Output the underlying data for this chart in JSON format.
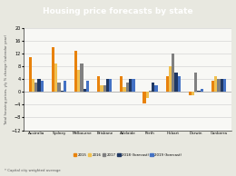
{
  "title": "Housing price forecasts by state",
  "title_bg": "#e8820c",
  "title_color": "white",
  "categories": [
    "Australia*",
    "Sydney",
    "Melbourne",
    "Brisbane",
    "Adelaide",
    "Perth",
    "Hobart",
    "Darwin",
    "Canberra"
  ],
  "series": {
    "2015": [
      11,
      14,
      13,
      5,
      5,
      -3.5,
      5,
      -1,
      3.5
    ],
    "2016": [
      4,
      9,
      7,
      2,
      1.5,
      -2,
      8,
      -1,
      5
    ],
    "2017": [
      3,
      3,
      9,
      2,
      3,
      0.5,
      12,
      6,
      4
    ],
    "2018 (forecast)": [
      4,
      0.5,
      1,
      4,
      4,
      3,
      6,
      0.5,
      4
    ],
    "2019 (forecast)": [
      3.5,
      3.5,
      3.5,
      4,
      4,
      2,
      5,
      1,
      4
    ]
  },
  "colors": {
    "2015": "#e8820c",
    "2016": "#f0c050",
    "2017": "#808080",
    "2018 (forecast)": "#1f3864",
    "2019 (forecast)": "#4472c4"
  },
  "ylabel": "Total housing prices, y/y % change (calendar year)",
  "ylim": [
    -12,
    20
  ],
  "yticks": [
    -12,
    -8,
    -4,
    0,
    4,
    8,
    12,
    16,
    20
  ],
  "footnote": "* Capital city weighted average",
  "background_color": "#e8e8e0",
  "plot_bg": "#f8f8f5"
}
